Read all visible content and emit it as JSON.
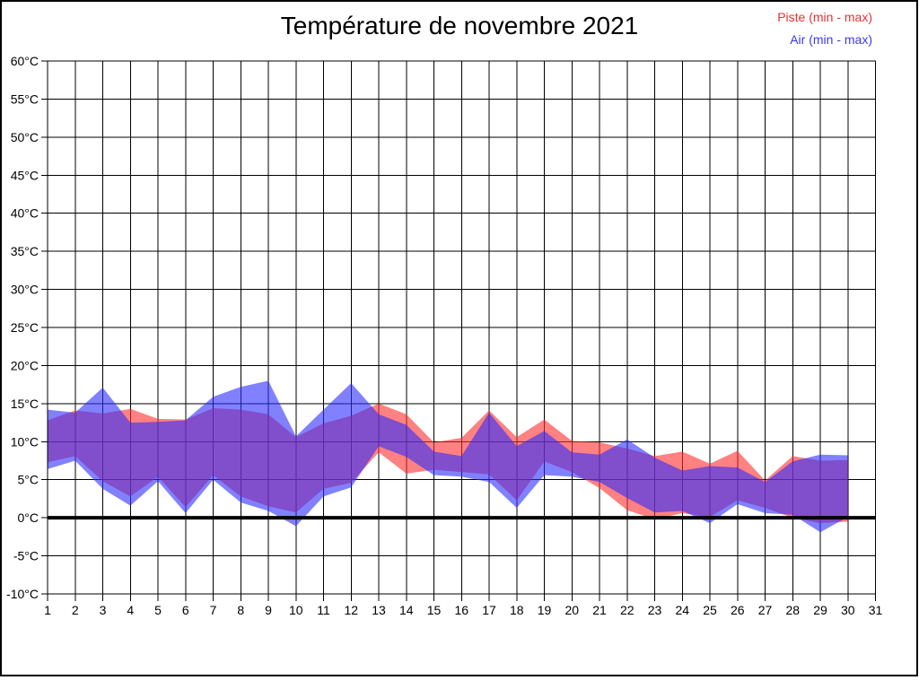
{
  "page": {
    "background": "#ffffff",
    "frame_color": "#000000"
  },
  "chart_data": {
    "type": "area",
    "title": "Température de novembre 2021",
    "x": [
      1,
      2,
      3,
      4,
      5,
      6,
      7,
      8,
      9,
      10,
      11,
      12,
      13,
      14,
      15,
      16,
      17,
      18,
      19,
      20,
      21,
      22,
      23,
      24,
      25,
      26,
      27,
      28,
      29,
      30
    ],
    "xlim": [
      1,
      31
    ],
    "ylim": [
      -10,
      60
    ],
    "ytick_step": 5,
    "ytick_suffix": "°C",
    "grid": true,
    "zero_line": true,
    "legend_position": "top-right",
    "series": [
      {
        "id": "piste",
        "name": "Piste (min - max)",
        "legend_color": "#ee2e2e",
        "fill": "rgba(255,45,45,0.6)",
        "min": [
          7.3,
          8.1,
          4.8,
          2.8,
          5.4,
          1.4,
          5.6,
          2.8,
          1.5,
          0.7,
          3.8,
          4.6,
          8.6,
          5.8,
          6.3,
          6.0,
          5.7,
          2.3,
          7.4,
          6.0,
          3.9,
          1.0,
          -0.2,
          0.6,
          0.1,
          2.3,
          1.3,
          0.0,
          -0.7,
          -0.5
        ],
        "max": [
          12.8,
          14.1,
          13.7,
          14.3,
          13.0,
          12.9,
          14.4,
          14.2,
          13.6,
          10.6,
          12.4,
          13.4,
          15.0,
          13.6,
          9.9,
          10.5,
          14.1,
          10.6,
          12.9,
          10.1,
          9.9,
          9.1,
          8.1,
          8.7,
          7.1,
          8.8,
          4.9,
          8.1,
          7.5,
          7.6
        ]
      },
      {
        "id": "air",
        "name": "Air (min - max)",
        "legend_color": "#3a3aee",
        "fill": "rgba(45,45,255,0.6)",
        "min": [
          6.4,
          7.5,
          3.8,
          1.6,
          4.8,
          0.6,
          5.0,
          2.0,
          0.9,
          -1.1,
          2.8,
          4.0,
          9.4,
          8.0,
          5.6,
          5.4,
          4.7,
          1.3,
          5.6,
          5.4,
          4.7,
          2.6,
          0.7,
          0.9,
          -0.7,
          1.8,
          0.6,
          0.4,
          -1.9,
          0.1
        ],
        "max": [
          14.2,
          13.8,
          17.1,
          12.5,
          12.6,
          12.8,
          15.9,
          17.2,
          18.0,
          10.7,
          14.2,
          17.7,
          13.6,
          12.2,
          8.7,
          8.1,
          13.8,
          9.4,
          11.4,
          8.6,
          8.3,
          10.3,
          7.9,
          6.2,
          6.8,
          6.6,
          4.7,
          7.4,
          8.3,
          8.2
        ]
      }
    ]
  }
}
